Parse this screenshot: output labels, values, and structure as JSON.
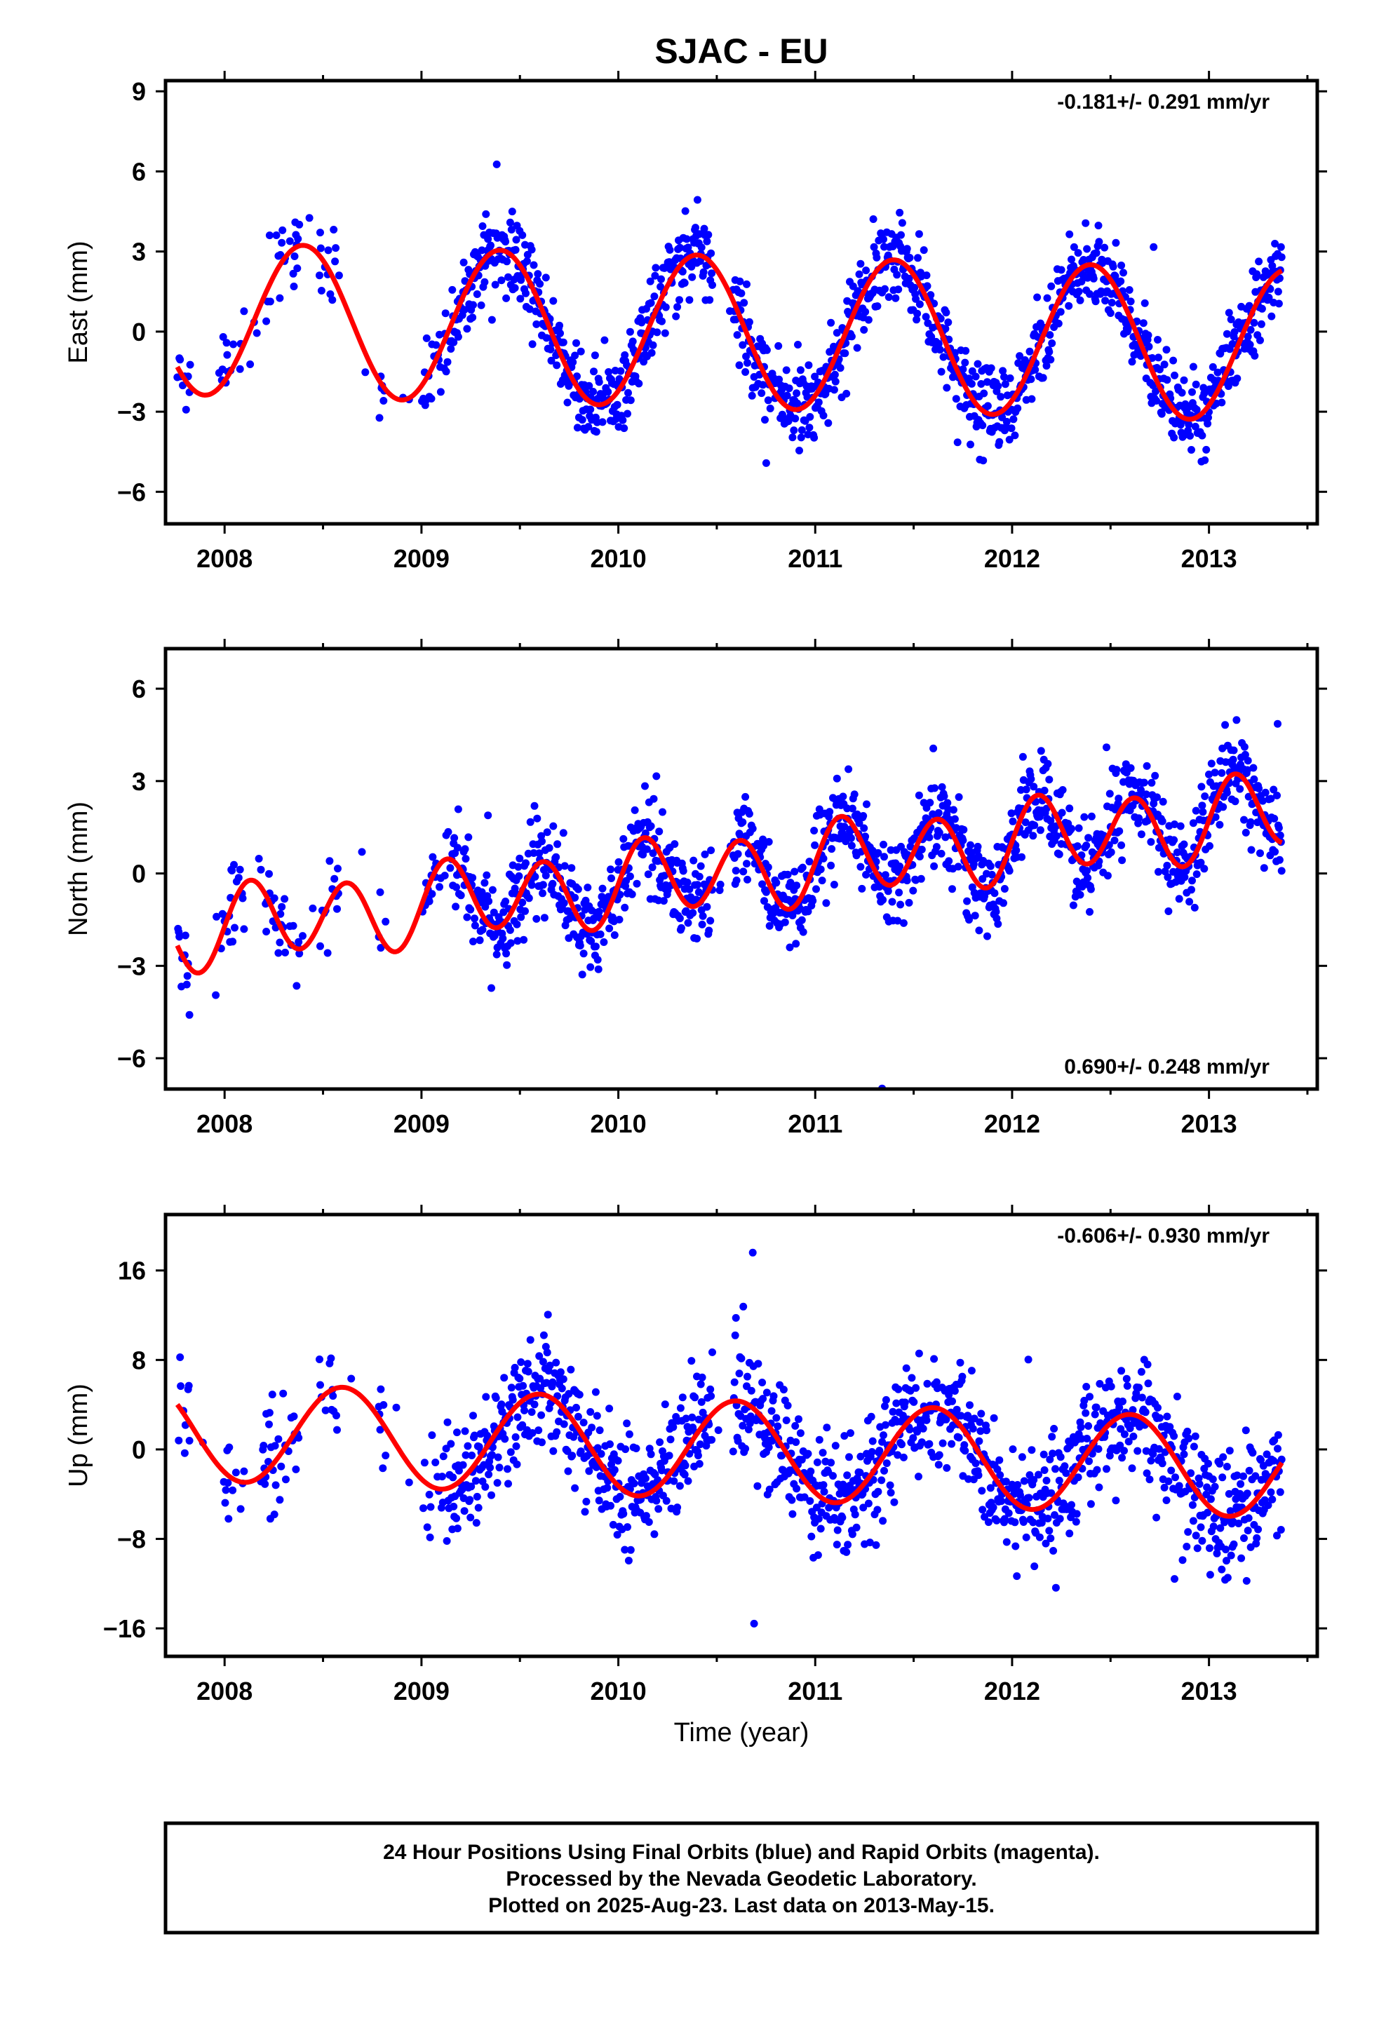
{
  "chart_data": [
    {
      "type": "scatter",
      "panel": "east",
      "title": "SJAC - EU",
      "ylabel": "East (mm)",
      "xlabel": "",
      "xlim": [
        2007.7,
        2013.55
      ],
      "ylim": [
        -7.2,
        9.4
      ],
      "x_ticks": [
        "2008",
        "2009",
        "2010",
        "2011",
        "2012",
        "2013"
      ],
      "y_ticks": [
        "-6",
        "-3",
        "0",
        "3",
        "6",
        "9"
      ],
      "rate_text": "-0.181+/- 0.291 mm/yr",
      "rate_position": "top-right",
      "points_color": "#0000ff",
      "model_color": "#ff0000",
      "data_span": [
        2007.76,
        2013.37
      ],
      "trend_mm_per_yr": -0.181,
      "annual_amplitude_mm": 2.85,
      "annual_peak_fraction": 0.4,
      "noise_mm": 1.1
    },
    {
      "type": "scatter",
      "panel": "north",
      "ylabel": "North (mm)",
      "xlabel": "",
      "xlim": [
        2007.7,
        2013.55
      ],
      "ylim": [
        -7.0,
        7.3
      ],
      "x_ticks": [
        "2008",
        "2009",
        "2010",
        "2011",
        "2012",
        "2013"
      ],
      "y_ticks": [
        "-6",
        "-3",
        "0",
        "3",
        "6"
      ],
      "rate_text": "0.690+/- 0.248 mm/yr",
      "rate_position": "bottom-right",
      "points_color": "#0000ff",
      "model_color": "#ff0000",
      "data_span": [
        2007.76,
        2013.37
      ],
      "trend_mm_per_yr": 0.69,
      "annual_amplitude_mm": 0.3,
      "semiannual_amplitude_mm": 1.2,
      "noise_mm": 1.0
    },
    {
      "type": "scatter",
      "panel": "up",
      "ylabel": "Up (mm)",
      "xlabel": "Time (year)",
      "xlim": [
        2007.7,
        2013.55
      ],
      "ylim": [
        -18.5,
        21
      ],
      "x_ticks": [
        "2008",
        "2009",
        "2010",
        "2011",
        "2012",
        "2013"
      ],
      "y_ticks": [
        "-16",
        "-8",
        "0",
        "8",
        "16"
      ],
      "rate_text": "-0.606+/- 0.930 mm/yr",
      "rate_position": "top-right",
      "points_color": "#0000ff",
      "model_color": "#ff0000",
      "data_span": [
        2007.76,
        2013.37
      ],
      "trend_mm_per_yr": -0.606,
      "annual_amplitude_mm": 4.4,
      "annual_peak_fraction": 0.6,
      "noise_mm": 3.8
    }
  ],
  "footer": {
    "line1": "24 Hour Positions Using Final Orbits (blue) and Rapid Orbits (magenta).",
    "line2": "Processed by the Nevada Geodetic Laboratory.",
    "line3": "Plotted on 2025-Aug-23. Last data on 2013-May-15."
  }
}
